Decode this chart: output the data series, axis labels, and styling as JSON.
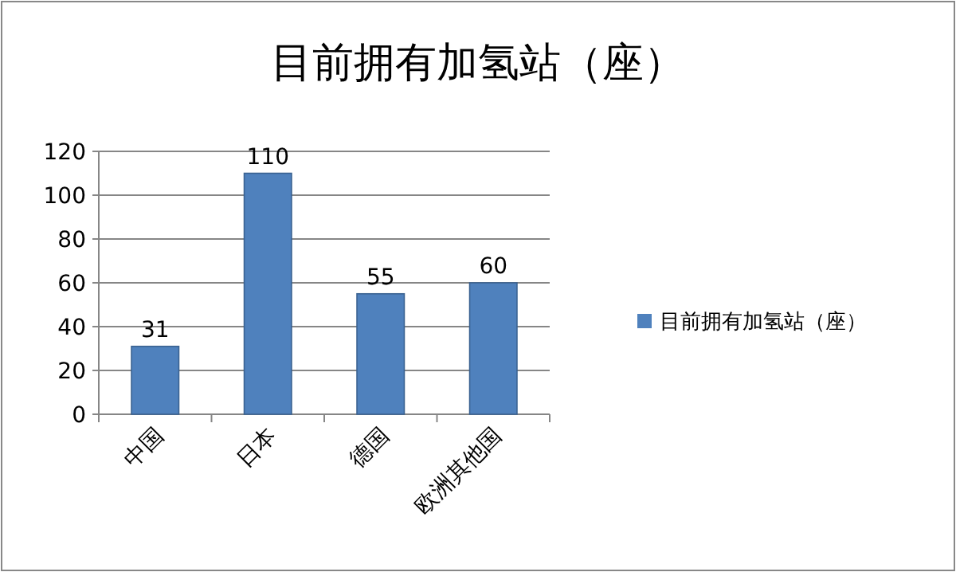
{
  "chart_data": {
    "type": "bar",
    "title": "目前拥有加氢站（座）",
    "categories": [
      "中国",
      "日本",
      "德国",
      "欧洲其他国"
    ],
    "series": [
      {
        "name": "目前拥有加氢站（座）",
        "color": "#4f81bd",
        "values": [
          31,
          110,
          55,
          60
        ]
      }
    ],
    "ylim": [
      0,
      120
    ],
    "yticks": [
      0,
      20,
      40,
      60,
      80,
      100,
      120
    ],
    "grid": "y",
    "legend": "right",
    "data_labels": true
  }
}
